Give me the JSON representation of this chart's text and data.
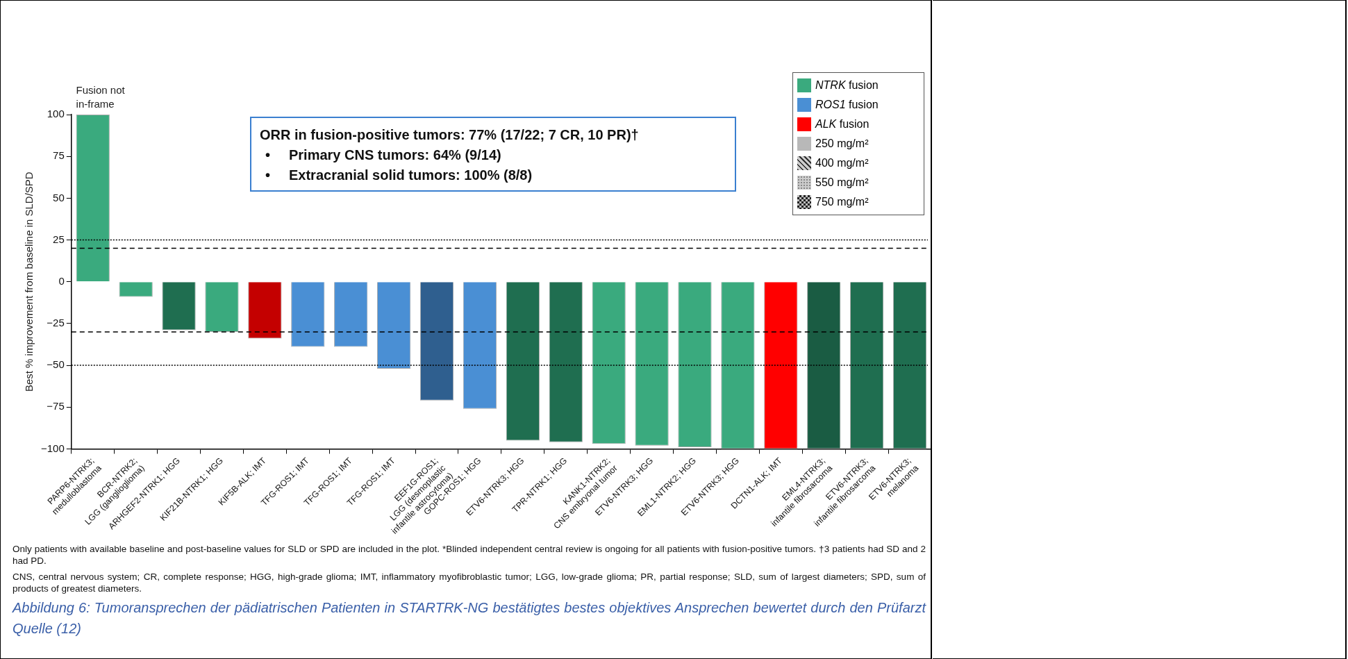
{
  "chart_data": {
    "type": "bar",
    "ylabel": "Best % improvement from baseline in SLD/SPD",
    "categories": [
      "PARP6-NTRK3; medulloblastoma",
      "BCR-NTRK2; LGG (ganglioglioma)",
      "ARHGEF2-NTRK1; HGG",
      "KIF21B-NTRK1; HGG",
      "KIF5B-ALK; IMT",
      "TFG-ROS1; IMT",
      "TFG-ROS1; IMT",
      "TFG-ROS1; IMT",
      "EEF1G-ROS1; LGG (desmoplastic infantile astrocytoma)",
      "GOPC-ROS1; HGG",
      "ETV6-NTRK3; HGG",
      "TPR-NTRK1; HGG",
      "KANK1-NTRK2; CNS embryonal tumor",
      "ETV6-NTRK3; HGG",
      "EML1-NTRK2; HGG",
      "ETV6-NTRK3; HGG",
      "DCTN1-ALK; IMT",
      "EML4-NTRK3; infantile fibrosarcoma",
      "ETV6-NTRK3; infantile fibrosarcoma",
      "ETV6-NTRK3; melanoma"
    ],
    "series": [
      {
        "name": "NTRK fusion",
        "color": "#3aaa7e",
        "values": [
          100,
          -9,
          -29,
          -30,
          null,
          null,
          null,
          null,
          null,
          null,
          -95,
          -96,
          -97,
          -98,
          -99,
          -100,
          null,
          -100,
          -100,
          -100
        ],
        "colors": [
          "#3aaa7e",
          "#3aaa7e",
          "#1f6e50",
          "#3aaa7e",
          null,
          null,
          null,
          null,
          null,
          null,
          "#1f6e50",
          "#1f6e50",
          "#3aaa7e",
          "#3aaa7e",
          "#3aaa7e",
          "#3aaa7e",
          null,
          "#1a5c43",
          "#1f6e50",
          "#1f6e50"
        ]
      },
      {
        "name": "ROS1 fusion",
        "color": "#4a8fd4",
        "values": [
          null,
          null,
          null,
          null,
          null,
          -39,
          -39,
          -52,
          -71,
          -76,
          null,
          null,
          null,
          null,
          null,
          null,
          null,
          null,
          null,
          null
        ],
        "colors": [
          null,
          null,
          null,
          null,
          null,
          "#4a8fd4",
          "#4a8fd4",
          "#4a8fd4",
          "#2f5f8f",
          "#4a8fd4",
          null,
          null,
          null,
          null,
          null,
          null,
          null,
          null,
          null,
          null
        ]
      },
      {
        "name": "ALK fusion",
        "color": "#ff0000",
        "values": [
          null,
          null,
          null,
          null,
          -34,
          null,
          null,
          null,
          null,
          null,
          null,
          null,
          null,
          null,
          null,
          null,
          -100,
          null,
          null,
          null
        ],
        "colors": [
          null,
          null,
          null,
          null,
          "#c40000",
          null,
          null,
          null,
          null,
          null,
          null,
          null,
          null,
          null,
          null,
          null,
          "#ff0000",
          null,
          null,
          null
        ]
      }
    ],
    "ylim": [
      -100,
      100
    ],
    "yticks": [
      -100,
      -75,
      -50,
      -25,
      0,
      25,
      50,
      75,
      100
    ],
    "ref_lines": [
      {
        "axis": "y",
        "value": 25,
        "line_style": "dotted",
        "color": "#000000"
      },
      {
        "axis": "y",
        "value": 20,
        "line_style": "dashed",
        "color": "#000000"
      },
      {
        "axis": "y",
        "value": -30,
        "line_style": "dashed",
        "color": "#000000"
      },
      {
        "axis": "y",
        "value": -50,
        "line_style": "dotted",
        "color": "#000000"
      }
    ],
    "legend": "top right",
    "grid": false,
    "annotations": [
      {
        "text": "Fusion not in-frame",
        "x": "PARP6-NTRK3; medulloblastoma",
        "y": 100
      },
      "ORR in fusion-positive tumors: 77% (17/22; 7 CR, 10 PR)†",
      "• Primary CNS tumors: 64% (9/14)",
      "• Extracranial solid tumors: 100% (8/8)",
      "250 mg/m²",
      "400 mg/m²",
      "550 mg/m²",
      "750 mg/m²",
      "Only patients with available baseline and post-baseline values for SLD or SPD are included in the plot. *Blinded independent central review is ongoing for all patients with fusion-positive tumors. †3 patients had SD and 2 had PD.",
      "CNS, central nervous system; CR, complete response; HGG, high-grade glioma; IMT, inflammatory myofibroblastic tumor; LGG, low-grade glioma; PR, partial response; SLD, sum of largest diameters; SPD, sum of products of greatest diameters.",
      "Abbildung 6: Tumoransprechen der pädiatrischen Patienten in STARTRK-NG bestätigtes bestes objektives Ansprechen bewertet durch den Prüfarzt Quelle (12)"
    ]
  }
}
